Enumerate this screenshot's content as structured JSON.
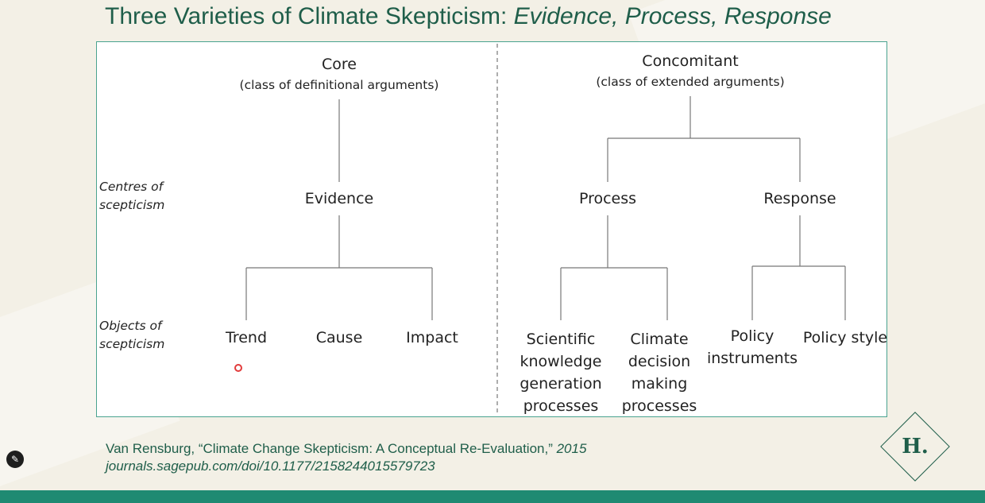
{
  "slide": {
    "title_main": "Three Varieties of Climate Skepticism: ",
    "title_italic": "Evidence, Process, Response"
  },
  "diagram": {
    "core": {
      "label": "Core",
      "sub": "(class of definitional arguments)"
    },
    "concomitant": {
      "label": "Concomitant",
      "sub": "(class of extended arguments)"
    },
    "row_labels": {
      "centres": [
        "Centres of",
        "scepticism"
      ],
      "objects": [
        "Objects of",
        "scepticism"
      ]
    },
    "centres": {
      "evidence": "Evidence",
      "process": "Process",
      "response": "Response"
    },
    "objects": {
      "trend": "Trend",
      "cause": "Cause",
      "impact": "Impact",
      "scientific": [
        "Scientific",
        "knowledge",
        "generation",
        "processes"
      ],
      "climate_decision": [
        "Climate",
        "decision",
        "making",
        "processes"
      ],
      "policy_instruments": [
        "Policy",
        "instruments"
      ],
      "policy_style": "Policy style"
    }
  },
  "citation": {
    "line1_main": "Van Rensburg, “Climate Change Skepticism: A Conceptual Re-Evaluation,” ",
    "line1_year": "2015",
    "line2": "journals.sagepub.com/doi/10.1177/2158244015579723"
  },
  "logo": {
    "letter": "H."
  },
  "icons": {
    "edit": "pencil-icon"
  },
  "colors": {
    "accent": "#1f5e4a",
    "panel_border": "#4aa390",
    "footer": "#1f8a72"
  }
}
